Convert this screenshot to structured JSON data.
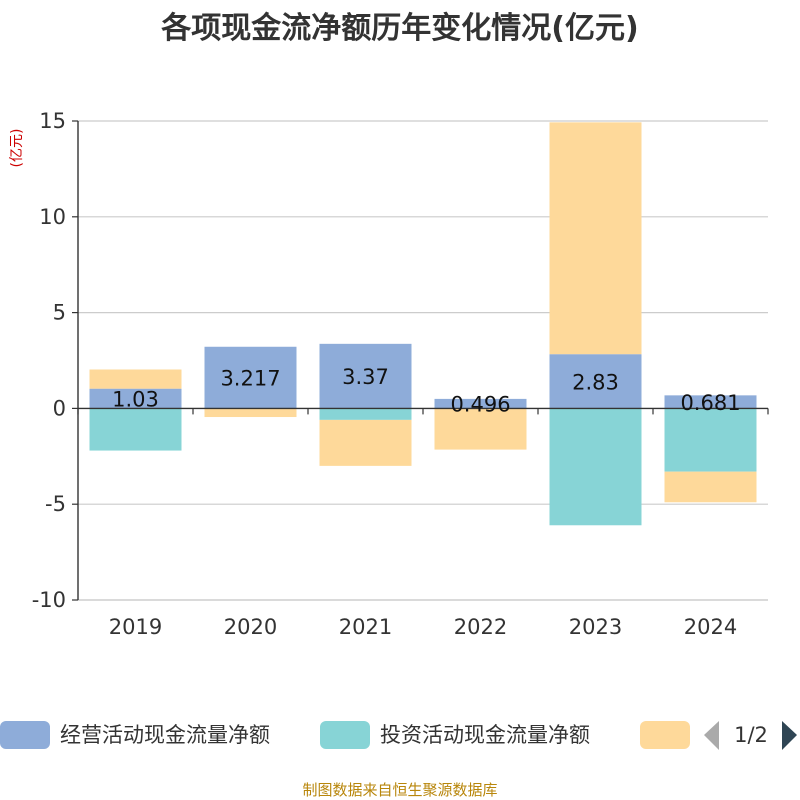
{
  "chart_data": {
    "type": "bar",
    "stacked": true,
    "title": "各项现金流净额历年变化情况(亿元)",
    "ylabel": "(亿元)",
    "categories": [
      "2019",
      "2020",
      "2021",
      "2022",
      "2023",
      "2024"
    ],
    "ylim": [
      -10,
      15
    ],
    "yticks": [
      15,
      10,
      5,
      0,
      -5,
      -10
    ],
    "grid": true,
    "series": [
      {
        "name": "经营活动现金流量净额",
        "color": "#8eacd9",
        "values": [
          1.03,
          3.217,
          3.37,
          0.496,
          2.83,
          0.681
        ],
        "labels": [
          "1.03",
          "3.217",
          "3.37",
          "0.496",
          "2.83",
          "0.681"
        ]
      },
      {
        "name": "投资活动现金流量净额",
        "color": "#87d4d6",
        "values": [
          -2.2,
          0,
          -0.6,
          0,
          -6.1,
          -3.3
        ]
      },
      {
        "name": "",
        "color": "#fed99a",
        "values": [
          1.0,
          -0.45,
          -2.4,
          -2.15,
          12.1,
          -1.6
        ]
      }
    ],
    "legend": {
      "position": "bottom",
      "page": "1/2"
    },
    "source": "制图数据来自恒生聚源数据库"
  }
}
